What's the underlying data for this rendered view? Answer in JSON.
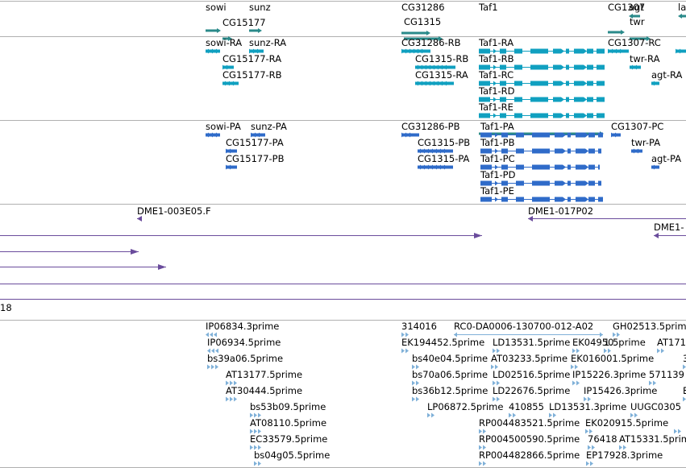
{
  "colors": {
    "genes": "#2a8a8a",
    "transcripts": "#10a0c0",
    "proteins": "#2f6bc9",
    "clones": "#6a4c9c",
    "ests": "#7fb0d8",
    "divider": "#b0b0b0"
  },
  "tracks": {
    "gene": {
      "features": [
        {
          "label": "sowi",
          "type": "bar"
        },
        {
          "label": "sunz",
          "type": "bar"
        },
        {
          "label": "CG15177",
          "type": "bar"
        },
        {
          "label": "CG31286",
          "type": "bar"
        },
        {
          "label": "CG1315",
          "type": "bar"
        },
        {
          "label": "Taf1",
          "type": "bar"
        },
        {
          "label": "CG1307",
          "type": "bar"
        },
        {
          "label": "agt",
          "type": "bar"
        },
        {
          "label": "la",
          "type": "bar"
        },
        {
          "label": "twr",
          "type": "bar"
        }
      ]
    },
    "transcript": {
      "features": [
        {
          "label": "sowi-RA",
          "type": "arrows"
        },
        {
          "label": "sunz-RA",
          "type": "arrows"
        },
        {
          "label": "CG15177-RA",
          "type": "arrows"
        },
        {
          "label": "CG15177-RB",
          "type": "arrows"
        },
        {
          "label": "CG31286-RB",
          "type": "arrows"
        },
        {
          "label": "CG1315-RB",
          "type": "arrows"
        },
        {
          "label": "CG1315-RA",
          "type": "arrows"
        },
        {
          "label": "Taf1-RA",
          "type": "exons"
        },
        {
          "label": "Taf1-RB",
          "type": "exons"
        },
        {
          "label": "Taf1-RC",
          "type": "exons"
        },
        {
          "label": "Taf1-RD",
          "type": "exons"
        },
        {
          "label": "Taf1-RE",
          "type": "exons"
        },
        {
          "label": "CG1307-RC",
          "type": "arrows"
        },
        {
          "label": "twr-RA",
          "type": "arrows"
        },
        {
          "label": "agt-RA",
          "type": "arrows"
        },
        {
          "label": "",
          "type": "arrows"
        }
      ]
    },
    "protein": {
      "features": [
        {
          "label": "sowi-PA",
          "type": "arrows"
        },
        {
          "label": "sunz-PA",
          "type": "arrows"
        },
        {
          "label": "CG15177-PA",
          "type": "arrows"
        },
        {
          "label": "CG15177-PB",
          "type": "arrows"
        },
        {
          "label": "CG31286-PB",
          "type": "arrows"
        },
        {
          "label": "CG1315-PB",
          "type": "arrows"
        },
        {
          "label": "CG1315-PA",
          "type": "arrows"
        },
        {
          "label": "Taf1-PA",
          "type": "exons"
        },
        {
          "label": "Taf1-PB",
          "type": "exons"
        },
        {
          "label": "Taf1-PC",
          "type": "exons"
        },
        {
          "label": "Taf1-PD",
          "type": "exons"
        },
        {
          "label": "Taf1-PE",
          "type": "exons"
        },
        {
          "label": "CG1307-PC",
          "type": "arrows"
        },
        {
          "label": "twr-PA",
          "type": "arrows"
        },
        {
          "label": "agt-PA",
          "type": "arrows"
        }
      ]
    },
    "clone": {
      "features": [
        {
          "label": "DME1-003E05.F",
          "type": "marker"
        },
        {
          "label": "DME1-017P02",
          "type": "line"
        },
        {
          "label": "DME1-",
          "type": "line"
        },
        {
          "label": "",
          "type": "line"
        },
        {
          "label": "",
          "type": "line"
        },
        {
          "label": "",
          "type": "line"
        },
        {
          "label": "",
          "type": "line"
        },
        {
          "label": "18",
          "type": "line"
        }
      ]
    },
    "est": {
      "features": [
        {
          "label": "IP06834.3prime"
        },
        {
          "label": "IP06934.5prime"
        },
        {
          "label": "bs39a06.5prime"
        },
        {
          "label": "AT13177.5prime"
        },
        {
          "label": "AT30444.5prime"
        },
        {
          "label": "bs53b09.5prime"
        },
        {
          "label": "AT08110.5prime"
        },
        {
          "label": "EC33579.5prime"
        },
        {
          "label": "bs04g05.5prime"
        },
        {
          "label": "314016"
        },
        {
          "label": "RC0-DA0006-130700-012-A02"
        },
        {
          "label": "GH02513.5prime"
        },
        {
          "label": "EK194452.5prime"
        },
        {
          "label": "LD13531.5prime"
        },
        {
          "label": "EK04950"
        },
        {
          "label": "1.5prime"
        },
        {
          "label": "AT171"
        },
        {
          "label": "bs40e04.5prime"
        },
        {
          "label": "AT03233.5prime"
        },
        {
          "label": "EK016001.5prime"
        },
        {
          "label": "3"
        },
        {
          "label": "bs70a06.5prime"
        },
        {
          "label": "LD02516.5prime"
        },
        {
          "label": "IP15226.3prime"
        },
        {
          "label": "571139"
        },
        {
          "label": "bs36b12.5prime"
        },
        {
          "label": "LD22676.5prime"
        },
        {
          "label": "IP15426.3prime"
        },
        {
          "label": "E"
        },
        {
          "label": "LP06872.5prime"
        },
        {
          "label": "410855"
        },
        {
          "label": "LD13531.3prime"
        },
        {
          "label": "UUGC0305"
        },
        {
          "label": "RP004483521.5prime"
        },
        {
          "label": "EK020915.5prime"
        },
        {
          "label": "RP004500590.5prime"
        },
        {
          "label": "76418"
        },
        {
          "label": "AT15331.5prime"
        },
        {
          "label": "RP004482866.5prime"
        },
        {
          "label": "EP17928.3prime"
        },
        {
          "label": ""
        }
      ]
    }
  }
}
